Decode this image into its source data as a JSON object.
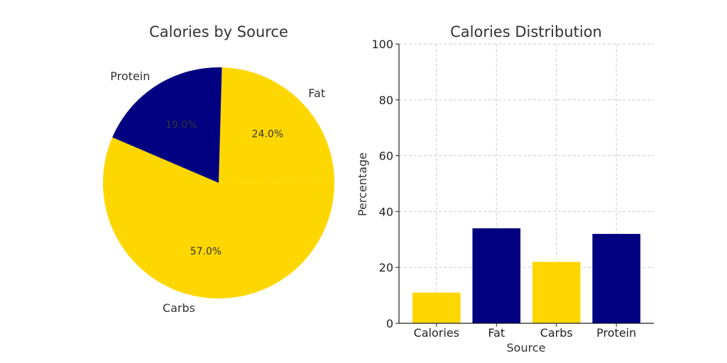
{
  "chart_data": [
    {
      "type": "pie",
      "title": "Calories by Source",
      "labels": [
        "Fat",
        "Protein",
        "Carbs"
      ],
      "values": [
        24.0,
        19.0,
        57.0
      ],
      "percent_labels": [
        "24.0%",
        "19.0%",
        "57.0%"
      ],
      "colors": [
        "#FFD700",
        "#000080",
        "#FFD700"
      ]
    },
    {
      "type": "bar",
      "title": "Calories Distribution",
      "categories": [
        "Calories",
        "Fat",
        "Carbs",
        "Protein"
      ],
      "values": [
        11,
        34,
        22,
        32
      ],
      "colors": [
        "#FFD700",
        "#000080",
        "#FFD700",
        "#000080"
      ],
      "xlabel": "Source",
      "ylabel": "Percentage",
      "ylim": [
        0,
        100
      ],
      "yticks": [
        "0",
        "20",
        "40",
        "60",
        "80",
        "100"
      ],
      "grid": true
    }
  ]
}
